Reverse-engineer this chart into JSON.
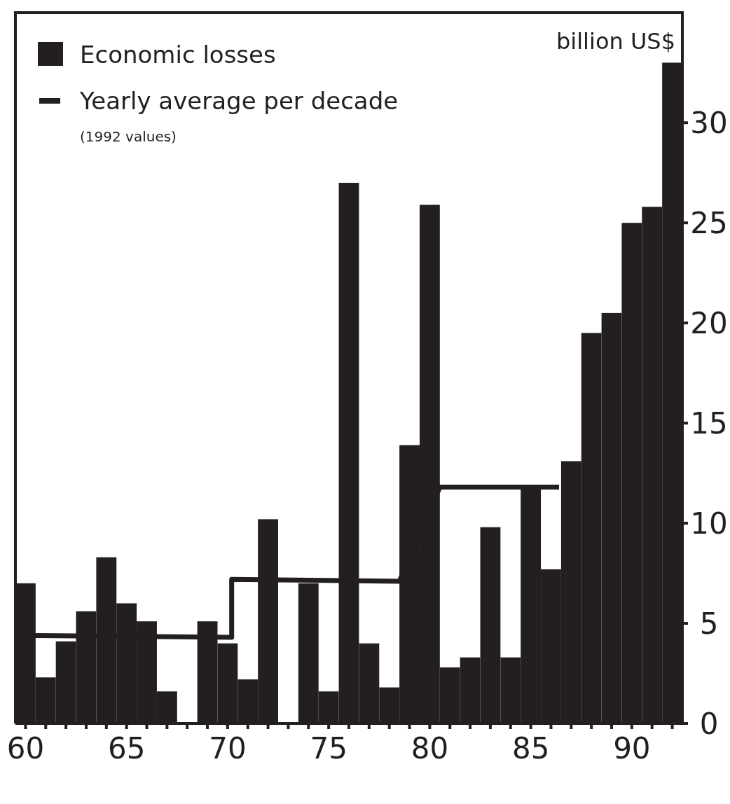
{
  "chart_data": {
    "type": "bar",
    "ylabel": "billion US$",
    "annotations": [
      "(1992 values)"
    ],
    "x": [
      60,
      61,
      62,
      63,
      64,
      65,
      66,
      67,
      68,
      69,
      70,
      71,
      72,
      73,
      74,
      75,
      76,
      77,
      78,
      79,
      80,
      81,
      82,
      83,
      84,
      85,
      86,
      87,
      88,
      89,
      90,
      91,
      92
    ],
    "series": [
      {
        "name": "Economic losses",
        "color": "#231f20",
        "values": [
          7,
          2.3,
          4.1,
          5.6,
          8.3,
          6,
          5.1,
          1.6,
          0,
          5.1,
          4,
          2.2,
          10.2,
          0,
          7,
          1.6,
          27,
          4,
          1.8,
          13.9,
          25.9,
          2.8,
          3.3,
          9.8,
          3.3,
          11.8,
          7.7,
          13.1,
          19.5,
          20.5,
          25,
          25.8,
          33
        ]
      },
      {
        "name": "Yearly average per decade",
        "type": "line",
        "color": "#231f20",
        "x": [
          59.5,
          70.2,
          70.2,
          78.5,
          80.5,
          86.4
        ],
        "values": [
          4.4,
          4.3,
          7.2,
          7.1,
          11.8,
          11.8
        ]
      }
    ],
    "xlim": [
      59.5,
      92.5
    ],
    "ylim": [
      0,
      35.5
    ],
    "xticks": [
      60,
      {
        "value": 61,
        "label": null
      },
      {
        "value": 62,
        "label": null
      },
      {
        "value": 63,
        "label": null
      },
      {
        "value": 64,
        "label": null
      },
      65,
      {
        "value": 66,
        "label": null
      },
      {
        "value": 67,
        "label": null
      },
      {
        "value": 68,
        "label": null
      },
      {
        "value": 69,
        "label": null
      },
      70,
      {
        "value": 71,
        "label": null
      },
      {
        "value": 72,
        "label": null
      },
      {
        "value": 73,
        "label": null
      },
      {
        "value": 74,
        "label": null
      },
      75,
      {
        "value": 76,
        "label": null
      },
      {
        "value": 77,
        "label": null
      },
      {
        "value": 78,
        "label": null
      },
      {
        "value": 79,
        "label": null
      },
      80,
      {
        "value": 81,
        "label": null
      },
      {
        "value": 82,
        "label": null
      },
      {
        "value": 83,
        "label": null
      },
      {
        "value": 84,
        "label": null
      },
      85,
      {
        "value": 86,
        "label": null
      },
      {
        "value": 87,
        "label": null
      },
      {
        "value": 88,
        "label": null
      },
      {
        "value": 89,
        "label": null
      },
      90,
      {
        "value": 91,
        "label": null
      },
      {
        "value": 92,
        "label": null
      }
    ],
    "yticks": [
      0,
      5,
      10,
      15,
      20,
      25,
      30
    ],
    "legend": "top left",
    "grid": false
  }
}
